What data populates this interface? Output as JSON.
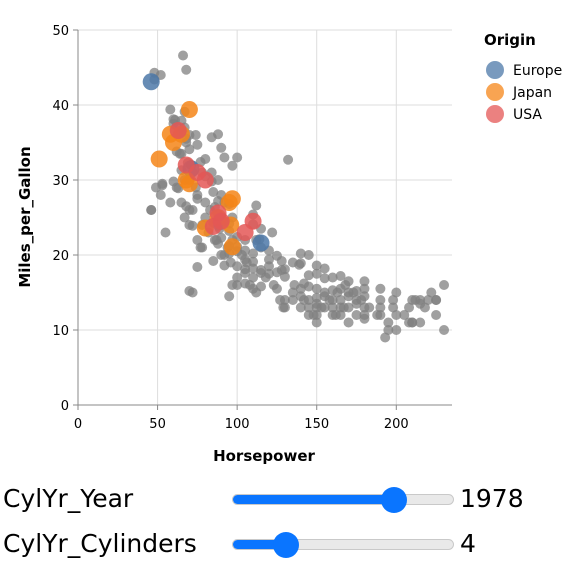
{
  "chart_data": {
    "type": "scatter",
    "x_field": "Horsepower",
    "y_field": "Miles_per_Gallon",
    "xlabel": "Horsepower",
    "ylabel": "Miles_per_Gallon",
    "xlim": [
      0,
      235
    ],
    "ylim": [
      0,
      50
    ],
    "x_ticks": [
      0,
      50,
      100,
      150,
      200
    ],
    "y_ticks": [
      0,
      10,
      20,
      30,
      40,
      50
    ],
    "grid": true,
    "legend": {
      "title": "Origin",
      "placement": "right",
      "entries": [
        {
          "label": "Europe",
          "color": "#4c78a8"
        },
        {
          "label": "Japan",
          "color": "#f58518"
        },
        {
          "label": "USA",
          "color": "#e45756"
        }
      ]
    },
    "background_color": "#808080",
    "background_points": [
      [
        66,
        46.6
      ],
      [
        68,
        44.7
      ],
      [
        48,
        44.3
      ],
      [
        52,
        44
      ],
      [
        48,
        43.4
      ],
      [
        67,
        39.1
      ],
      [
        58,
        39.4
      ],
      [
        61,
        38
      ],
      [
        60,
        38.1
      ],
      [
        65,
        37.9
      ],
      [
        63,
        36.1
      ],
      [
        62,
        37.2
      ],
      [
        67,
        37
      ],
      [
        65,
        36.4
      ],
      [
        70,
        36
      ],
      [
        74,
        36
      ],
      [
        68,
        35
      ],
      [
        88,
        36.1
      ],
      [
        84,
        35.7
      ],
      [
        90,
        34.3
      ],
      [
        75,
        34.7
      ],
      [
        70,
        34.1
      ],
      [
        62,
        33.8
      ],
      [
        65,
        33.5
      ],
      [
        92,
        33
      ],
      [
        80,
        32.8
      ],
      [
        77,
        32.4
      ],
      [
        69,
        32.3
      ],
      [
        71,
        32
      ],
      [
        100,
        33
      ],
      [
        132,
        32.7
      ],
      [
        97,
        31.9
      ],
      [
        65,
        31.3
      ],
      [
        78,
        31
      ],
      [
        67,
        30
      ],
      [
        70,
        30
      ],
      [
        53,
        29.3
      ],
      [
        49,
        29
      ],
      [
        53,
        29.5
      ],
      [
        60,
        29.8
      ],
      [
        80,
        30.5
      ],
      [
        88,
        30
      ],
      [
        84,
        29.8
      ],
      [
        63,
        28.9
      ],
      [
        75,
        28
      ],
      [
        90,
        28
      ],
      [
        92,
        27
      ],
      [
        88,
        27.2
      ],
      [
        75,
        27.5
      ],
      [
        68,
        26.5
      ],
      [
        46,
        26
      ],
      [
        46,
        26
      ],
      [
        70,
        26
      ],
      [
        72,
        26
      ],
      [
        83,
        26
      ],
      [
        86,
        26.4
      ],
      [
        88,
        25.4
      ],
      [
        110,
        25.4
      ],
      [
        112,
        26.6
      ],
      [
        97,
        25
      ],
      [
        80,
        25
      ],
      [
        85,
        24.3
      ],
      [
        95,
        24.2
      ],
      [
        92,
        24.5
      ],
      [
        88,
        23.9
      ],
      [
        72,
        23.9
      ],
      [
        78,
        24
      ],
      [
        89,
        23.5
      ],
      [
        110,
        24.1
      ],
      [
        115,
        23.5
      ],
      [
        122,
        23
      ],
      [
        95,
        23.2
      ],
      [
        100,
        22.4
      ],
      [
        90,
        22.3
      ],
      [
        86,
        22
      ],
      [
        97,
        22
      ],
      [
        105,
        22
      ],
      [
        112,
        22
      ],
      [
        114,
        22.1
      ],
      [
        88,
        21.5
      ],
      [
        95,
        21.2
      ],
      [
        100,
        21.1
      ],
      [
        105,
        20.6
      ],
      [
        110,
        20.2
      ],
      [
        120,
        20.6
      ],
      [
        100,
        20.5
      ],
      [
        90,
        20
      ],
      [
        95,
        20.2
      ],
      [
        105,
        19.4
      ],
      [
        85,
        19.2
      ],
      [
        110,
        19.1
      ],
      [
        120,
        19.4
      ],
      [
        125,
        19.9
      ],
      [
        128,
        19.2
      ],
      [
        140,
        20.2
      ],
      [
        145,
        20
      ],
      [
        75,
        18.4
      ],
      [
        92,
        18.6
      ],
      [
        100,
        18.5
      ],
      [
        105,
        18.1
      ],
      [
        110,
        18.2
      ],
      [
        115,
        18
      ],
      [
        120,
        18.5
      ],
      [
        130,
        18.1
      ],
      [
        135,
        19
      ],
      [
        139,
        18.7
      ],
      [
        140,
        18.9
      ],
      [
        150,
        18.6
      ],
      [
        155,
        18.2
      ],
      [
        105,
        17.6
      ],
      [
        110,
        17
      ],
      [
        115,
        17.6
      ],
      [
        120,
        17.5
      ],
      [
        125,
        17.7
      ],
      [
        130,
        17.1
      ],
      [
        145,
        17.3
      ],
      [
        150,
        17.5
      ],
      [
        155,
        16.9
      ],
      [
        160,
        17
      ],
      [
        165,
        17.2
      ],
      [
        170,
        16.5
      ],
      [
        180,
        16.5
      ],
      [
        97,
        16
      ],
      [
        100,
        16
      ],
      [
        105,
        16.2
      ],
      [
        110,
        15.5
      ],
      [
        115,
        15.8
      ],
      [
        125,
        15.5
      ],
      [
        140,
        15.5
      ],
      [
        145,
        15.8
      ],
      [
        150,
        15.5
      ],
      [
        155,
        15
      ],
      [
        160,
        15.3
      ],
      [
        165,
        15.5
      ],
      [
        170,
        15
      ],
      [
        175,
        15.2
      ],
      [
        180,
        15.5
      ],
      [
        190,
        15.5
      ],
      [
        200,
        15
      ],
      [
        72,
        15
      ],
      [
        70,
        15.2
      ],
      [
        95,
        14.5
      ],
      [
        130,
        14
      ],
      [
        135,
        14
      ],
      [
        140,
        14.5
      ],
      [
        145,
        14
      ],
      [
        150,
        14.3
      ],
      [
        155,
        14.5
      ],
      [
        160,
        14
      ],
      [
        165,
        14
      ],
      [
        170,
        14.5
      ],
      [
        175,
        14
      ],
      [
        180,
        14.5
      ],
      [
        190,
        14
      ],
      [
        198,
        14
      ],
      [
        210,
        14
      ],
      [
        215,
        14
      ],
      [
        220,
        14
      ],
      [
        225,
        14
      ],
      [
        230,
        16
      ],
      [
        129,
        13
      ],
      [
        130,
        13
      ],
      [
        140,
        13
      ],
      [
        145,
        13
      ],
      [
        150,
        13.5
      ],
      [
        155,
        13
      ],
      [
        160,
        13
      ],
      [
        165,
        13
      ],
      [
        170,
        13
      ],
      [
        175,
        13.5
      ],
      [
        180,
        13
      ],
      [
        190,
        13
      ],
      [
        198,
        13
      ],
      [
        208,
        13
      ],
      [
        215,
        13.5
      ],
      [
        145,
        12
      ],
      [
        150,
        12
      ],
      [
        160,
        12
      ],
      [
        165,
        12
      ],
      [
        175,
        12
      ],
      [
        180,
        12
      ],
      [
        190,
        12
      ],
      [
        200,
        12
      ],
      [
        225,
        12
      ],
      [
        150,
        11
      ],
      [
        170,
        11
      ],
      [
        180,
        11.5
      ],
      [
        208,
        11
      ],
      [
        210,
        11
      ],
      [
        215,
        11
      ],
      [
        200,
        10
      ],
      [
        195,
        10
      ],
      [
        230,
        10
      ],
      [
        193,
        9
      ],
      [
        210,
        11
      ],
      [
        225,
        14
      ],
      [
        60,
        37.5
      ],
      [
        68,
        35.5
      ],
      [
        64,
        33.5
      ],
      [
        72,
        31
      ],
      [
        74,
        29
      ],
      [
        85,
        28.4
      ],
      [
        95,
        26.8
      ],
      [
        80,
        27
      ],
      [
        90,
        24
      ],
      [
        78,
        21
      ],
      [
        94,
        21
      ],
      [
        103,
        20
      ],
      [
        106,
        19
      ],
      [
        115,
        21
      ],
      [
        128,
        18
      ],
      [
        136,
        16
      ],
      [
        142,
        16.2
      ],
      [
        150,
        13
      ],
      [
        162,
        12
      ],
      [
        167,
        13
      ],
      [
        84,
        31
      ],
      [
        71,
        32
      ],
      [
        52,
        28
      ],
      [
        55,
        23
      ],
      [
        58,
        27
      ],
      [
        62,
        29
      ],
      [
        65,
        27
      ],
      [
        67,
        25
      ],
      [
        70,
        24
      ],
      [
        75,
        22
      ],
      [
        77,
        21
      ],
      [
        82,
        23
      ],
      [
        87,
        22
      ],
      [
        92,
        20
      ],
      [
        96,
        19
      ],
      [
        100,
        17
      ],
      [
        108,
        16
      ],
      [
        112,
        15
      ],
      [
        118,
        17
      ],
      [
        123,
        16
      ],
      [
        127,
        14
      ],
      [
        135,
        15
      ],
      [
        142,
        14
      ],
      [
        148,
        12
      ],
      [
        153,
        13
      ],
      [
        158,
        14
      ],
      [
        163,
        15
      ],
      [
        168,
        16
      ],
      [
        173,
        15
      ],
      [
        178,
        14
      ],
      [
        183,
        13
      ],
      [
        188,
        12
      ],
      [
        195,
        11
      ],
      [
        205,
        12
      ],
      [
        212,
        14
      ],
      [
        218,
        13
      ],
      [
        222,
        15
      ]
    ],
    "highlighted_points": [
      {
        "origin": "Europe",
        "color": "#4c78a8",
        "points": [
          [
            46,
            43.1
          ],
          [
            71,
            31.5
          ],
          [
            115,
            21.6
          ]
        ]
      },
      {
        "origin": "Japan",
        "color": "#f58518",
        "points": [
          [
            70,
            39.4
          ],
          [
            58,
            36.1
          ],
          [
            65,
            36.1
          ],
          [
            60,
            35
          ],
          [
            51,
            32.8
          ],
          [
            68,
            30
          ],
          [
            70,
            29.5
          ],
          [
            97,
            27.5
          ],
          [
            95,
            27
          ],
          [
            96,
            24
          ],
          [
            80,
            23.6
          ],
          [
            97,
            21.1
          ],
          [
            88,
            25
          ]
        ]
      },
      {
        "origin": "USA",
        "color": "#e45756",
        "points": [
          [
            63,
            36.6
          ],
          [
            68,
            32
          ],
          [
            75,
            31
          ],
          [
            88,
            25.6
          ],
          [
            85,
            23.8
          ],
          [
            90,
            24.5
          ],
          [
            105,
            23
          ],
          [
            80,
            30
          ],
          [
            110,
            24.5
          ]
        ]
      }
    ]
  },
  "controls": {
    "year": {
      "label": "CylYr_Year",
      "value": "1978",
      "fill": 0.73
    },
    "cylinders": {
      "label": "CylYr_Cylinders",
      "value": "4",
      "fill": 0.24
    }
  }
}
